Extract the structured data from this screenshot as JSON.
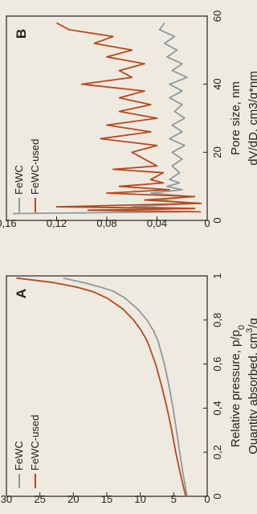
{
  "chart_data": [
    {
      "type": "line",
      "panel_label": "A",
      "xlabel": "Relative pressure, p/p",
      "xlabel_sub": "0",
      "ylabel": "Quantity absorbed, cm",
      "ylabel_sup": "3",
      "ylabel_tail": "/g",
      "xlim": [
        0,
        1
      ],
      "ylim": [
        0,
        30
      ],
      "x_ticks": [
        "0",
        "0,2",
        "0,4",
        "0,6",
        "0,8",
        "1"
      ],
      "x_tick_values": [
        0,
        0.2,
        0.4,
        0.6,
        0.8,
        1.0
      ],
      "y_ticks": [
        "0",
        "5",
        "10",
        "15",
        "20",
        "25",
        "30"
      ],
      "y_tick_values": [
        0,
        5,
        10,
        15,
        20,
        25,
        30
      ],
      "grid": false,
      "legend_position": "top-left",
      "series": [
        {
          "name": "FeWC",
          "color": "#8a9ba0",
          "x": [
            0.0,
            0.05,
            0.1,
            0.2,
            0.3,
            0.4,
            0.5,
            0.6,
            0.7,
            0.75,
            0.8,
            0.85,
            0.9,
            0.93,
            0.95,
            0.97,
            0.99
          ],
          "y": [
            3.0,
            3.3,
            3.6,
            4.1,
            4.6,
            5.1,
            5.7,
            6.4,
            7.3,
            8.0,
            9.0,
            10.4,
            12.3,
            14.0,
            16.0,
            18.5,
            21.5
          ]
        },
        {
          "name": "FeWC-used",
          "color": "#b8481f",
          "x": [
            0.0,
            0.05,
            0.1,
            0.2,
            0.3,
            0.4,
            0.5,
            0.6,
            0.7,
            0.75,
            0.8,
            0.85,
            0.9,
            0.93,
            0.95,
            0.97,
            0.99
          ],
          "y": [
            3.2,
            3.6,
            4.0,
            4.7,
            5.3,
            6.0,
            6.8,
            7.7,
            8.9,
            9.8,
            11.0,
            12.6,
            15.0,
            17.2,
            19.6,
            23.0,
            28.5
          ]
        }
      ]
    },
    {
      "type": "line",
      "panel_label": "B",
      "xlabel": "Pore size, nm",
      "ylabel": "dV/dD, cm3/g*nm",
      "xlim": [
        0,
        60
      ],
      "ylim": [
        0,
        0.16
      ],
      "x_ticks": [
        "0",
        "20",
        "40",
        "60"
      ],
      "x_tick_values": [
        0,
        20,
        40,
        60
      ],
      "y_ticks": [
        "0",
        "0,04",
        "0,08",
        "0,12",
        "0,16"
      ],
      "y_tick_values": [
        0,
        0.04,
        0.08,
        0.12,
        0.16
      ],
      "grid": false,
      "legend_position": "top-left",
      "series": [
        {
          "name": "FeWC",
          "color": "#8a9ba0",
          "x": [
            2,
            2.5,
            3,
            3.5,
            4,
            5,
            6,
            7,
            8,
            9,
            10,
            11,
            12,
            14,
            16,
            18,
            20,
            22,
            24,
            26,
            28,
            30,
            32,
            34,
            36,
            38,
            40,
            42,
            44,
            46,
            48,
            50,
            52,
            54,
            56,
            58
          ],
          "y": [
            0.155,
            0.02,
            0.09,
            0.01,
            0.06,
            0.01,
            0.04,
            0.012,
            0.045,
            0.02,
            0.032,
            0.022,
            0.03,
            0.022,
            0.028,
            0.02,
            0.028,
            0.018,
            0.03,
            0.02,
            0.028,
            0.018,
            0.026,
            0.02,
            0.03,
            0.02,
            0.03,
            0.016,
            0.028,
            0.02,
            0.032,
            0.024,
            0.034,
            0.026,
            0.038,
            0.034
          ]
        },
        {
          "name": "FeWC-used",
          "color": "#b8481f",
          "x": [
            2.5,
            3,
            3.5,
            4,
            5,
            6,
            7,
            8,
            9,
            10,
            11,
            12,
            14,
            15,
            16,
            18,
            20,
            22,
            24,
            26,
            28,
            30,
            32,
            34,
            36,
            38,
            40,
            42,
            44,
            46,
            48,
            50,
            52,
            54,
            56,
            58
          ],
          "y": [
            0.005,
            0.095,
            0.01,
            0.12,
            0.005,
            0.05,
            0.01,
            0.08,
            0.03,
            0.07,
            0.035,
            0.045,
            0.035,
            0.075,
            0.04,
            0.05,
            0.06,
            0.04,
            0.085,
            0.045,
            0.08,
            0.04,
            0.07,
            0.045,
            0.07,
            0.05,
            0.1,
            0.06,
            0.07,
            0.05,
            0.08,
            0.06,
            0.09,
            0.075,
            0.11,
            0.12
          ]
        }
      ]
    }
  ]
}
